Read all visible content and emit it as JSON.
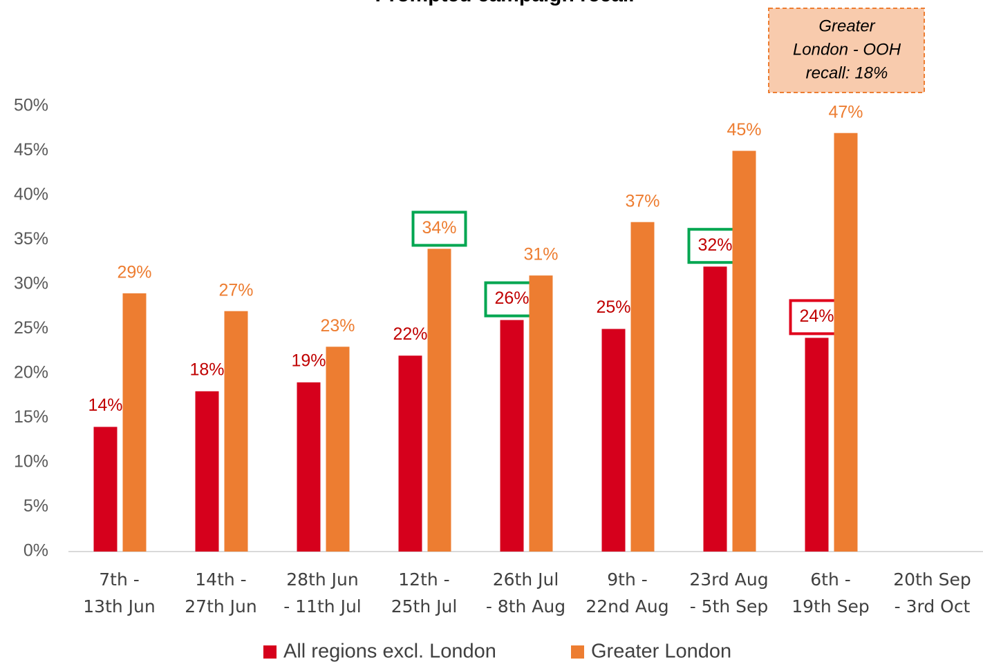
{
  "chart_data": {
    "type": "bar",
    "title": "Prompted campaign recall",
    "categories": [
      "7th -\n13th Jun",
      "14th -\n27th Jun",
      "28th Jun\n- 11th Jul",
      "12th -\n25th Jul",
      "26th Jul\n- 8th Aug",
      "9th -\n22nd Aug",
      "23rd Aug\n- 5th Sep",
      "6th -\n19th Sep",
      "20th Sep\n- 3rd Oct"
    ],
    "series": [
      {
        "name": "All regions excl. London",
        "color": "#d6001c",
        "label_color": "#c00000",
        "values": [
          14,
          18,
          19,
          22,
          26,
          25,
          32,
          24,
          null
        ],
        "value_labels": [
          "14%",
          "18%",
          "19%",
          "22%",
          "26%",
          "25%",
          "32%",
          "24%",
          null
        ]
      },
      {
        "name": "Greater London",
        "color": "#ed7d31",
        "label_color": "#ed7d31",
        "values": [
          29,
          27,
          23,
          34,
          31,
          37,
          45,
          47,
          null
        ],
        "value_labels": [
          "29%",
          "27%",
          "23%",
          "34%",
          "31%",
          "37%",
          "45%",
          "47%",
          null
        ]
      }
    ],
    "ylim": [
      0,
      50
    ],
    "yticks": [
      {
        "value": 0,
        "label": "0%"
      },
      {
        "value": 5,
        "label": "5%"
      },
      {
        "value": 10,
        "label": "10%"
      },
      {
        "value": 15,
        "label": "15%"
      },
      {
        "value": 20,
        "label": "20%"
      },
      {
        "value": 25,
        "label": "25%"
      },
      {
        "value": 30,
        "label": "30%"
      },
      {
        "value": 35,
        "label": "35%"
      },
      {
        "value": 40,
        "label": "40%"
      },
      {
        "value": 45,
        "label": "45%"
      },
      {
        "value": 50,
        "label": "50%"
      }
    ],
    "annotation": [
      "Greater",
      "London - OOH",
      "recall: 18%"
    ],
    "legend": "bottom"
  }
}
